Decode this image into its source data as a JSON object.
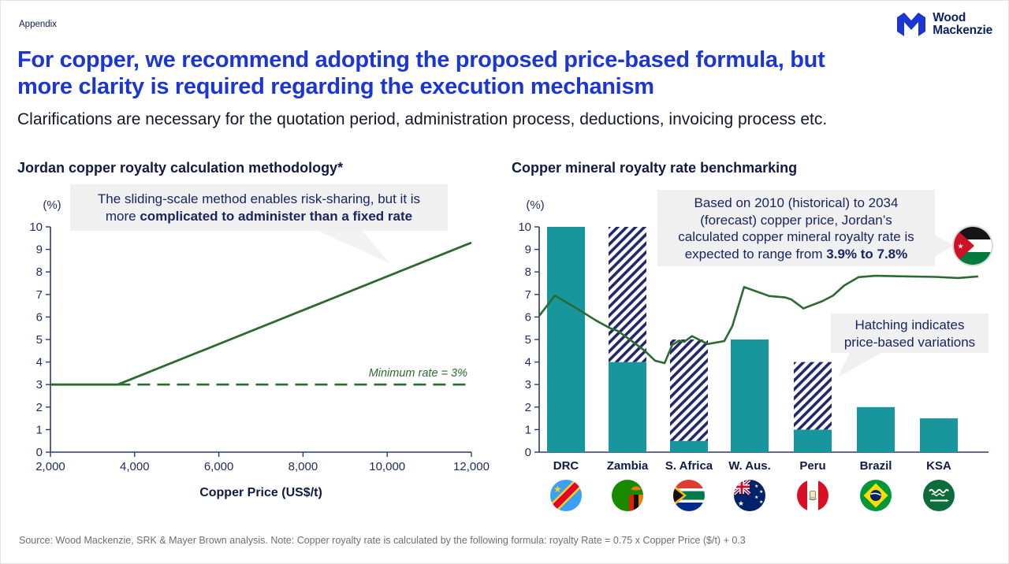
{
  "slide": {
    "appendix_label": "Appendix",
    "logo_line1": "Wood",
    "logo_line2": "Mackenzie",
    "title_line1": "For copper, we recommend adopting the proposed price-based formula, but",
    "title_line2": "more clarity is required regarding the execution mechanism",
    "subtitle": "Clarifications are necessary for the quotation period, administration process, deductions, invoicing process etc.",
    "footer": "Source: Wood Mackenzie, SRK & Mayer Brown analysis. Note: Copper royalty rate is calculated by the following formula: royalty Rate = 0.75 x Copper Price ($/t) + 0.3"
  },
  "colors": {
    "title_blue": "#1C36D2",
    "axis_navy": "#2E3A66",
    "tick_navy": "#1F2A5C",
    "dark_navy": "#111A45",
    "teal": "#17969D",
    "green": "#2C6A31",
    "hatch_navy": "#23276A",
    "callout_bg": "#F0F0F0",
    "tail_gray": "#F2F2F2"
  },
  "chart_data": [
    {
      "type": "line",
      "title": "Jordan copper royalty calculation methodology*",
      "unit_label": "(%)",
      "xlabel": "Copper Price (US$/t)",
      "ylim": [
        0,
        10
      ],
      "y_ticks": [
        0,
        1,
        2,
        3,
        4,
        5,
        6,
        7,
        8,
        9,
        10
      ],
      "xlim": [
        2000,
        12000
      ],
      "x_ticks": [
        2000,
        4000,
        6000,
        8000,
        10000,
        12000
      ],
      "x_tick_labels": [
        "2,000",
        "4,000",
        "6,000",
        "8,000",
        "10,000",
        "12,000"
      ],
      "series": [
        {
          "name": "sliding-scale royalty rate",
          "style": "solid",
          "points": [
            [
              2000,
              3
            ],
            [
              3600,
              3
            ],
            [
              12000,
              9.3
            ]
          ]
        },
        {
          "name": "minimum rate",
          "style": "dashed",
          "points": [
            [
              3600,
              3
            ],
            [
              12000,
              3
            ]
          ]
        }
      ],
      "min_rate_label": "Minimum rate = 3%",
      "callout": {
        "line1": "The sliding-scale method enables risk-sharing, but it is",
        "line2_normal": "more ",
        "line2_bold": "complicated to administer than a fixed rate"
      }
    },
    {
      "type": "bar+line",
      "title": "Copper mineral royalty rate benchmarking",
      "unit_label": "(%)",
      "ylim": [
        0,
        10
      ],
      "y_ticks": [
        0,
        1,
        2,
        3,
        4,
        5,
        6,
        7,
        8,
        9,
        10
      ],
      "categories": [
        "DRC",
        "Zambia",
        "S. Africa",
        "W. Aus.",
        "Peru",
        "Brazil",
        "KSA"
      ],
      "bar_solid": [
        10,
        4,
        0.5,
        5,
        1,
        2,
        1.5
      ],
      "bar_hatch_top": [
        10,
        10,
        5,
        5,
        4,
        2,
        1.5
      ],
      "line_name": "Jordan calculated copper royalty rate (2010-2034)",
      "line_points_frac": [
        [
          0.0,
          6.05
        ],
        [
          0.035,
          6.95
        ],
        [
          0.082,
          6.4
        ],
        [
          0.126,
          5.85
        ],
        [
          0.158,
          5.5
        ],
        [
          0.175,
          5.38
        ],
        [
          0.205,
          4.95
        ],
        [
          0.235,
          4.5
        ],
        [
          0.258,
          4.06
        ],
        [
          0.279,
          3.95
        ],
        [
          0.296,
          4.75
        ],
        [
          0.311,
          4.95
        ],
        [
          0.323,
          4.9
        ],
        [
          0.34,
          5.15
        ],
        [
          0.363,
          4.92
        ],
        [
          0.375,
          4.8
        ],
        [
          0.389,
          4.85
        ],
        [
          0.412,
          4.93
        ],
        [
          0.43,
          5.6
        ],
        [
          0.456,
          7.33
        ],
        [
          0.512,
          6.93
        ],
        [
          0.547,
          6.87
        ],
        [
          0.561,
          6.78
        ],
        [
          0.588,
          6.38
        ],
        [
          0.63,
          6.7
        ],
        [
          0.654,
          6.95
        ],
        [
          0.679,
          7.4
        ],
        [
          0.711,
          7.77
        ],
        [
          0.749,
          7.83
        ],
        [
          0.819,
          7.8
        ],
        [
          0.881,
          7.78
        ],
        [
          0.933,
          7.73
        ],
        [
          0.977,
          7.8
        ]
      ],
      "callout_range": {
        "line1": "Based on 2010 (historical) to 2034",
        "line2": "(forecast) copper price, Jordan’s",
        "line3": "calculated copper mineral royalty rate is",
        "line4_normal": "expected to range from ",
        "line4_bold": "3.9% to 7.8%"
      },
      "callout_hatch": {
        "line1": "Hatching indicates",
        "line2": "price-based variations"
      },
      "flags": [
        "drc",
        "zambia",
        "south-africa",
        "australia",
        "peru",
        "brazil",
        "saudi-arabia"
      ]
    }
  ]
}
